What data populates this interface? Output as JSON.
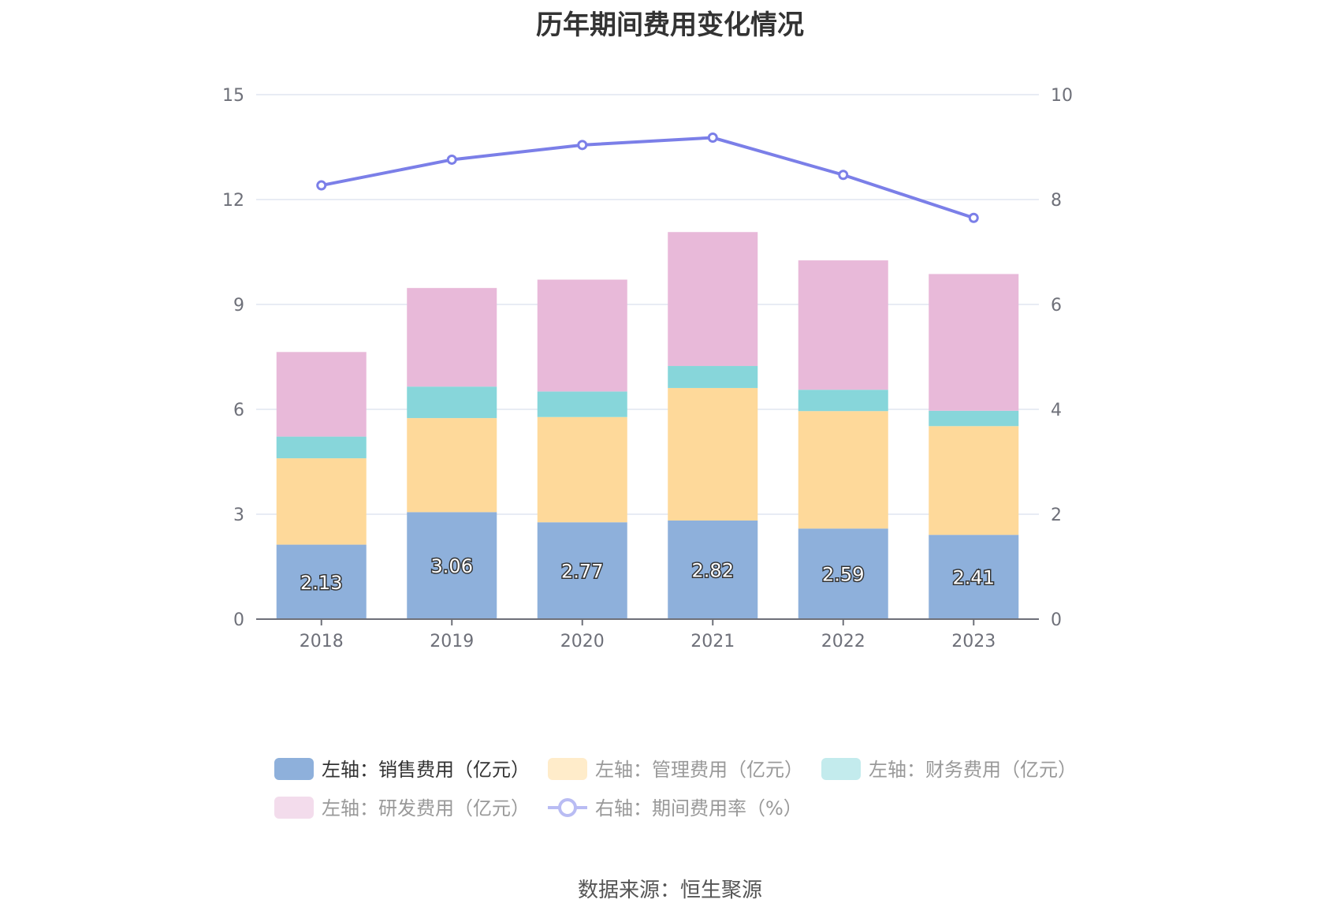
{
  "chart_data": {
    "type": "bar",
    "title": "历年期间费用变化情况",
    "categories": [
      "2018",
      "2019",
      "2020",
      "2021",
      "2022",
      "2023"
    ],
    "stacked": true,
    "left_axis": {
      "min": 0,
      "max": 15,
      "ticks": [
        "0",
        "3",
        "6",
        "9",
        "12",
        "15"
      ]
    },
    "right_axis": {
      "min": 0,
      "max": 10,
      "ticks": [
        "0",
        "2",
        "4",
        "6",
        "8",
        "10"
      ]
    },
    "grid": true,
    "legend_position": "bottom",
    "series": [
      {
        "name": "左轴：销售费用（亿元）",
        "axis": "left",
        "type": "bar",
        "color": "#8eb0db",
        "values": [
          2.13,
          3.06,
          2.77,
          2.82,
          2.59,
          2.41
        ],
        "labels": [
          "2.13",
          "3.06",
          "2.77",
          "2.82",
          "2.59",
          "2.41"
        ]
      },
      {
        "name": "左轴：管理费用（亿元）",
        "axis": "left",
        "type": "bar",
        "color": "#fed99a",
        "values": [
          2.47,
          2.69,
          3.01,
          3.79,
          3.36,
          3.11
        ]
      },
      {
        "name": "左轴：财务费用（亿元）",
        "axis": "left",
        "type": "bar",
        "color": "#87d6da",
        "values": [
          0.62,
          0.9,
          0.73,
          0.63,
          0.61,
          0.44
        ]
      },
      {
        "name": "左轴：研发费用（亿元）",
        "axis": "left",
        "type": "bar",
        "color": "#e8b9d9",
        "values": [
          2.42,
          2.82,
          3.2,
          3.83,
          3.7,
          3.91
        ]
      },
      {
        "name": "右轴：期间费用率（%）",
        "axis": "right",
        "type": "line",
        "color": "#7b7fe8",
        "values": [
          8.27,
          8.76,
          9.04,
          9.18,
          8.47,
          7.65
        ]
      }
    ],
    "legend_faded_colors": [
      "#8eb0db",
      "#ffecca",
      "#c3ebed",
      "#f3dcec",
      "#b9bcf3"
    ]
  },
  "source": "数据来源：恒生聚源"
}
